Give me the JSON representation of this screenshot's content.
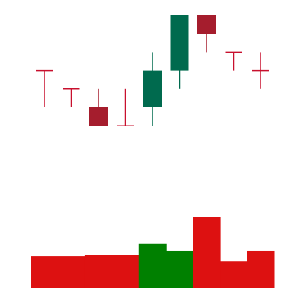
{
  "chart_data": [
    {
      "type": "candlestick",
      "title": "",
      "xlabel": "",
      "ylabel": "",
      "axes_visible": false,
      "grid": false,
      "legend": "none",
      "ylim": [
        0,
        100
      ],
      "colors": {
        "up": "#006a4e",
        "down": "#a51d2d",
        "doji": "#c8102e"
      },
      "candles": [
        {
          "open": 70,
          "high": 70,
          "low": 50,
          "close": 70
        },
        {
          "open": 60,
          "high": 60,
          "low": 50,
          "close": 60
        },
        {
          "open": 50,
          "high": 60,
          "low": 40,
          "close": 40
        },
        {
          "open": 40,
          "high": 60,
          "low": 40,
          "close": 40
        },
        {
          "open": 50,
          "high": 80,
          "low": 40,
          "close": 70
        },
        {
          "open": 70,
          "high": 100,
          "low": 60,
          "close": 100
        },
        {
          "open": 100,
          "high": 100,
          "low": 80,
          "close": 90
        },
        {
          "open": 80,
          "high": 80,
          "low": 70,
          "close": 80
        },
        {
          "open": 70,
          "high": 80,
          "low": 60,
          "close": 70
        }
      ]
    },
    {
      "type": "bar",
      "title": "",
      "xlabel": "",
      "ylabel": "",
      "axes_visible": false,
      "grid": false,
      "legend": "none",
      "ylim": [
        0,
        100
      ],
      "colors": {
        "up": "#008000",
        "down": "#dd1111"
      },
      "bars": [
        {
          "value": 45,
          "direction": "down"
        },
        {
          "value": 45,
          "direction": "down"
        },
        {
          "value": 47,
          "direction": "down"
        },
        {
          "value": 47,
          "direction": "down"
        },
        {
          "value": 62,
          "direction": "up"
        },
        {
          "value": 52,
          "direction": "up"
        },
        {
          "value": 100,
          "direction": "down"
        },
        {
          "value": 38,
          "direction": "down"
        },
        {
          "value": 52,
          "direction": "down"
        }
      ]
    }
  ]
}
